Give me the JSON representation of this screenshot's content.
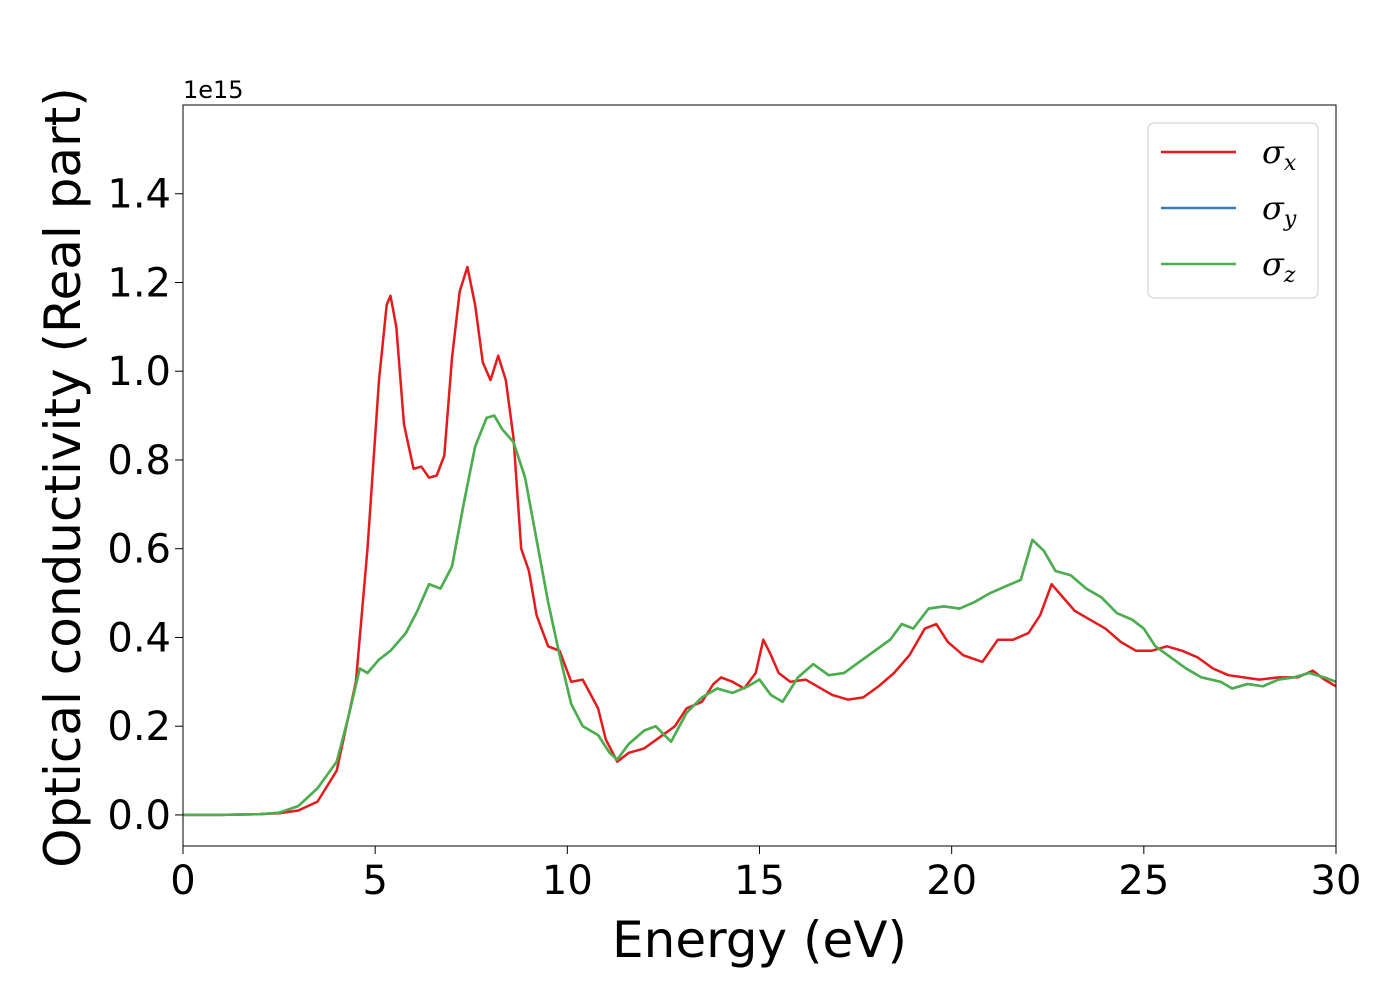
{
  "chart_data": {
    "type": "line",
    "xlabel": "Energy (eV)",
    "ylabel": "Optical conductivity (Real part)",
    "offset_text": "1e15",
    "xlim": [
      0,
      30
    ],
    "ylim": [
      -0.07,
      1.6
    ],
    "x_ticks": [
      "0",
      "5",
      "10",
      "15",
      "20",
      "25",
      "30"
    ],
    "y_ticks": [
      "0.0",
      "0.2",
      "0.4",
      "0.6",
      "0.8",
      "1.0",
      "1.2",
      "1.4"
    ],
    "grid": false,
    "legend_position": "top-right",
    "series": [
      {
        "name": "σx",
        "symbol": "σ",
        "sub": "x",
        "color": "#e41a1c",
        "points": [
          [
            0,
            0
          ],
          [
            1,
            0
          ],
          [
            2,
            0.002
          ],
          [
            2.5,
            0.004
          ],
          [
            3,
            0.01
          ],
          [
            3.5,
            0.03
          ],
          [
            4,
            0.1
          ],
          [
            4.5,
            0.3
          ],
          [
            4.8,
            0.6
          ],
          [
            5.1,
            0.98
          ],
          [
            5.3,
            1.15
          ],
          [
            5.4,
            1.17
          ],
          [
            5.55,
            1.1
          ],
          [
            5.75,
            0.88
          ],
          [
            6,
            0.78
          ],
          [
            6.2,
            0.785
          ],
          [
            6.4,
            0.76
          ],
          [
            6.6,
            0.765
          ],
          [
            6.8,
            0.81
          ],
          [
            7,
            1.03
          ],
          [
            7.2,
            1.18
          ],
          [
            7.4,
            1.235
          ],
          [
            7.6,
            1.15
          ],
          [
            7.8,
            1.02
          ],
          [
            8,
            0.98
          ],
          [
            8.2,
            1.035
          ],
          [
            8.4,
            0.98
          ],
          [
            8.6,
            0.85
          ],
          [
            8.8,
            0.6
          ],
          [
            9,
            0.55
          ],
          [
            9.2,
            0.45
          ],
          [
            9.5,
            0.38
          ],
          [
            9.8,
            0.37
          ],
          [
            10.1,
            0.3
          ],
          [
            10.4,
            0.305
          ],
          [
            10.8,
            0.24
          ],
          [
            11,
            0.17
          ],
          [
            11.3,
            0.12
          ],
          [
            11.6,
            0.14
          ],
          [
            12,
            0.15
          ],
          [
            12.4,
            0.175
          ],
          [
            12.8,
            0.2
          ],
          [
            13.1,
            0.24
          ],
          [
            13.5,
            0.255
          ],
          [
            13.8,
            0.295
          ],
          [
            14,
            0.31
          ],
          [
            14.3,
            0.3
          ],
          [
            14.6,
            0.285
          ],
          [
            14.9,
            0.32
          ],
          [
            15.1,
            0.395
          ],
          [
            15.3,
            0.36
          ],
          [
            15.5,
            0.32
          ],
          [
            15.8,
            0.3
          ],
          [
            16.2,
            0.305
          ],
          [
            16.5,
            0.29
          ],
          [
            16.9,
            0.27
          ],
          [
            17.3,
            0.26
          ],
          [
            17.7,
            0.265
          ],
          [
            18.1,
            0.29
          ],
          [
            18.5,
            0.32
          ],
          [
            18.9,
            0.36
          ],
          [
            19.3,
            0.42
          ],
          [
            19.6,
            0.43
          ],
          [
            19.9,
            0.39
          ],
          [
            20.3,
            0.36
          ],
          [
            20.8,
            0.345
          ],
          [
            21.2,
            0.395
          ],
          [
            21.6,
            0.395
          ],
          [
            22,
            0.41
          ],
          [
            22.3,
            0.45
          ],
          [
            22.6,
            0.52
          ],
          [
            22.9,
            0.49
          ],
          [
            23.2,
            0.46
          ],
          [
            23.6,
            0.44
          ],
          [
            24,
            0.42
          ],
          [
            24.4,
            0.39
          ],
          [
            24.8,
            0.37
          ],
          [
            25.2,
            0.37
          ],
          [
            25.6,
            0.38
          ],
          [
            26,
            0.37
          ],
          [
            26.4,
            0.355
          ],
          [
            26.8,
            0.33
          ],
          [
            27.2,
            0.315
          ],
          [
            27.6,
            0.31
          ],
          [
            28,
            0.305
          ],
          [
            28.5,
            0.31
          ],
          [
            29,
            0.31
          ],
          [
            29.4,
            0.325
          ],
          [
            29.7,
            0.305
          ],
          [
            30,
            0.29
          ]
        ]
      },
      {
        "name": "σy",
        "symbol": "σ",
        "sub": "y",
        "color": "#377eb8",
        "points": [
          [
            0,
            0
          ],
          [
            1,
            0
          ],
          [
            2,
            0.002
          ],
          [
            2.5,
            0.005
          ],
          [
            3,
            0.02
          ],
          [
            3.5,
            0.06
          ],
          [
            4,
            0.12
          ],
          [
            4.3,
            0.22
          ],
          [
            4.6,
            0.33
          ],
          [
            4.8,
            0.32
          ],
          [
            5.1,
            0.35
          ],
          [
            5.4,
            0.37
          ],
          [
            5.8,
            0.41
          ],
          [
            6.1,
            0.46
          ],
          [
            6.4,
            0.52
          ],
          [
            6.7,
            0.51
          ],
          [
            7,
            0.56
          ],
          [
            7.3,
            0.7
          ],
          [
            7.6,
            0.83
          ],
          [
            7.9,
            0.895
          ],
          [
            8.1,
            0.9
          ],
          [
            8.3,
            0.87
          ],
          [
            8.6,
            0.84
          ],
          [
            8.9,
            0.76
          ],
          [
            9.2,
            0.62
          ],
          [
            9.5,
            0.48
          ],
          [
            9.8,
            0.36
          ],
          [
            10.1,
            0.25
          ],
          [
            10.4,
            0.2
          ],
          [
            10.8,
            0.18
          ],
          [
            11.1,
            0.14
          ],
          [
            11.3,
            0.125
          ],
          [
            11.6,
            0.16
          ],
          [
            12,
            0.19
          ],
          [
            12.3,
            0.2
          ],
          [
            12.7,
            0.165
          ],
          [
            13.1,
            0.23
          ],
          [
            13.5,
            0.265
          ],
          [
            13.9,
            0.285
          ],
          [
            14.3,
            0.275
          ],
          [
            14.7,
            0.29
          ],
          [
            15,
            0.305
          ],
          [
            15.3,
            0.27
          ],
          [
            15.6,
            0.255
          ],
          [
            16,
            0.31
          ],
          [
            16.4,
            0.34
          ],
          [
            16.8,
            0.315
          ],
          [
            17.2,
            0.32
          ],
          [
            17.6,
            0.345
          ],
          [
            18,
            0.37
          ],
          [
            18.4,
            0.395
          ],
          [
            18.7,
            0.43
          ],
          [
            19,
            0.42
          ],
          [
            19.4,
            0.465
          ],
          [
            19.8,
            0.47
          ],
          [
            20.2,
            0.465
          ],
          [
            20.6,
            0.48
          ],
          [
            21,
            0.5
          ],
          [
            21.4,
            0.515
          ],
          [
            21.8,
            0.53
          ],
          [
            22.1,
            0.62
          ],
          [
            22.4,
            0.595
          ],
          [
            22.7,
            0.55
          ],
          [
            23.1,
            0.54
          ],
          [
            23.5,
            0.51
          ],
          [
            23.9,
            0.49
          ],
          [
            24.3,
            0.455
          ],
          [
            24.7,
            0.44
          ],
          [
            25,
            0.42
          ],
          [
            25.3,
            0.38
          ],
          [
            25.7,
            0.355
          ],
          [
            26.1,
            0.33
          ],
          [
            26.5,
            0.31
          ],
          [
            27,
            0.3
          ],
          [
            27.3,
            0.285
          ],
          [
            27.7,
            0.295
          ],
          [
            28.1,
            0.29
          ],
          [
            28.5,
            0.305
          ],
          [
            28.9,
            0.31
          ],
          [
            29.3,
            0.32
          ],
          [
            29.7,
            0.31
          ],
          [
            30,
            0.3
          ]
        ]
      },
      {
        "name": "σz",
        "symbol": "σ",
        "sub": "z",
        "color": "#4daf4a",
        "points": [
          [
            0,
            0
          ],
          [
            1,
            0
          ],
          [
            2,
            0.002
          ],
          [
            2.5,
            0.005
          ],
          [
            3,
            0.02
          ],
          [
            3.5,
            0.06
          ],
          [
            4,
            0.12
          ],
          [
            4.3,
            0.22
          ],
          [
            4.6,
            0.33
          ],
          [
            4.8,
            0.32
          ],
          [
            5.1,
            0.35
          ],
          [
            5.4,
            0.37
          ],
          [
            5.8,
            0.41
          ],
          [
            6.1,
            0.46
          ],
          [
            6.4,
            0.52
          ],
          [
            6.7,
            0.51
          ],
          [
            7,
            0.56
          ],
          [
            7.3,
            0.7
          ],
          [
            7.6,
            0.83
          ],
          [
            7.9,
            0.895
          ],
          [
            8.1,
            0.9
          ],
          [
            8.3,
            0.87
          ],
          [
            8.6,
            0.84
          ],
          [
            8.9,
            0.76
          ],
          [
            9.2,
            0.62
          ],
          [
            9.5,
            0.48
          ],
          [
            9.8,
            0.36
          ],
          [
            10.1,
            0.25
          ],
          [
            10.4,
            0.2
          ],
          [
            10.8,
            0.18
          ],
          [
            11.1,
            0.14
          ],
          [
            11.3,
            0.125
          ],
          [
            11.6,
            0.16
          ],
          [
            12,
            0.19
          ],
          [
            12.3,
            0.2
          ],
          [
            12.7,
            0.165
          ],
          [
            13.1,
            0.23
          ],
          [
            13.5,
            0.265
          ],
          [
            13.9,
            0.285
          ],
          [
            14.3,
            0.275
          ],
          [
            14.7,
            0.29
          ],
          [
            15,
            0.305
          ],
          [
            15.3,
            0.27
          ],
          [
            15.6,
            0.255
          ],
          [
            16,
            0.31
          ],
          [
            16.4,
            0.34
          ],
          [
            16.8,
            0.315
          ],
          [
            17.2,
            0.32
          ],
          [
            17.6,
            0.345
          ],
          [
            18,
            0.37
          ],
          [
            18.4,
            0.395
          ],
          [
            18.7,
            0.43
          ],
          [
            19,
            0.42
          ],
          [
            19.4,
            0.465
          ],
          [
            19.8,
            0.47
          ],
          [
            20.2,
            0.465
          ],
          [
            20.6,
            0.48
          ],
          [
            21,
            0.5
          ],
          [
            21.4,
            0.515
          ],
          [
            21.8,
            0.53
          ],
          [
            22.1,
            0.62
          ],
          [
            22.4,
            0.595
          ],
          [
            22.7,
            0.55
          ],
          [
            23.1,
            0.54
          ],
          [
            23.5,
            0.51
          ],
          [
            23.9,
            0.49
          ],
          [
            24.3,
            0.455
          ],
          [
            24.7,
            0.44
          ],
          [
            25,
            0.42
          ],
          [
            25.3,
            0.38
          ],
          [
            25.7,
            0.355
          ],
          [
            26.1,
            0.33
          ],
          [
            26.5,
            0.31
          ],
          [
            27,
            0.3
          ],
          [
            27.3,
            0.285
          ],
          [
            27.7,
            0.295
          ],
          [
            28.1,
            0.29
          ],
          [
            28.5,
            0.305
          ],
          [
            28.9,
            0.31
          ],
          [
            29.3,
            0.32
          ],
          [
            29.7,
            0.31
          ],
          [
            30,
            0.3
          ]
        ]
      }
    ]
  }
}
